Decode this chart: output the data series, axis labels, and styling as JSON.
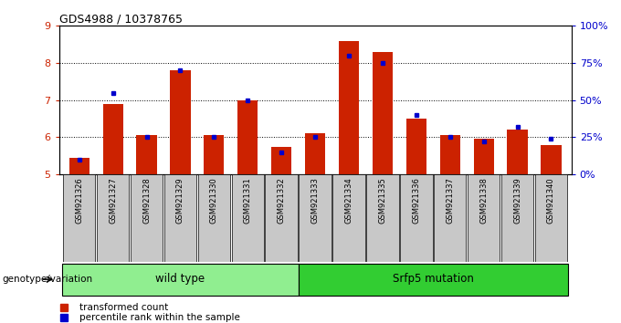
{
  "title": "GDS4988 / 10378765",
  "categories": [
    "GSM921326",
    "GSM921327",
    "GSM921328",
    "GSM921329",
    "GSM921330",
    "GSM921331",
    "GSM921332",
    "GSM921333",
    "GSM921334",
    "GSM921335",
    "GSM921336",
    "GSM921337",
    "GSM921338",
    "GSM921339",
    "GSM921340"
  ],
  "red_values": [
    5.45,
    6.9,
    6.05,
    7.8,
    6.05,
    7.0,
    5.75,
    6.1,
    8.6,
    8.3,
    6.5,
    6.05,
    5.95,
    6.2,
    5.8
  ],
  "blue_percentiles": [
    10,
    55,
    25,
    70,
    25,
    50,
    15,
    25,
    80,
    75,
    40,
    25,
    22,
    32,
    24
  ],
  "ylim_left": [
    5,
    9
  ],
  "ylim_right": [
    0,
    100
  ],
  "yticks_left": [
    5,
    6,
    7,
    8,
    9
  ],
  "yticks_right": [
    0,
    25,
    50,
    75,
    100
  ],
  "ytick_labels_right": [
    "0%",
    "25%",
    "50%",
    "75%",
    "100%"
  ],
  "groups": [
    {
      "label": "wild type",
      "start": 0,
      "end": 7,
      "color": "#90ee90"
    },
    {
      "label": "Srfp5 mutation",
      "start": 7,
      "end": 15,
      "color": "#32cd32"
    }
  ],
  "legend_items": [
    {
      "label": "transformed count",
      "color": "#cc2200"
    },
    {
      "label": "percentile rank within the sample",
      "color": "#0000cc"
    }
  ],
  "bar_color": "#cc2200",
  "dot_color": "#0000cc",
  "tick_bg_color": "#c8c8c8",
  "ylabel_left_color": "#cc2200",
  "ylabel_right_color": "#0000cc",
  "grid_yticks": [
    6,
    7,
    8
  ],
  "title_fontsize": 9,
  "bar_width": 0.6
}
